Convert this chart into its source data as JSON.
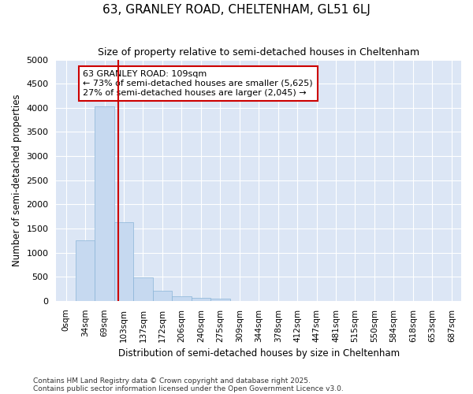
{
  "title": "63, GRANLEY ROAD, CHELTENHAM, GL51 6LJ",
  "subtitle": "Size of property relative to semi-detached houses in Cheltenham",
  "xlabel": "Distribution of semi-detached houses by size in Cheltenham",
  "ylabel": "Number of semi-detached properties",
  "bar_color": "#c6d9f0",
  "bar_edge_color": "#8ab4d8",
  "plot_bg_color": "#dce6f5",
  "fig_bg_color": "#ffffff",
  "grid_color": "#ffffff",
  "annotation_line_color": "#cc0000",
  "annotation_box_color": "#cc0000",
  "categories": [
    "0sqm",
    "34sqm",
    "69sqm",
    "103sqm",
    "137sqm",
    "172sqm",
    "206sqm",
    "240sqm",
    "275sqm",
    "309sqm",
    "344sqm",
    "378sqm",
    "412sqm",
    "447sqm",
    "481sqm",
    "515sqm",
    "550sqm",
    "584sqm",
    "618sqm",
    "653sqm",
    "687sqm"
  ],
  "values": [
    5,
    1250,
    4030,
    1630,
    480,
    215,
    100,
    65,
    40,
    0,
    0,
    0,
    0,
    0,
    0,
    0,
    0,
    0,
    0,
    0,
    0
  ],
  "ylim": [
    0,
    5000
  ],
  "yticks": [
    0,
    500,
    1000,
    1500,
    2000,
    2500,
    3000,
    3500,
    4000,
    4500,
    5000
  ],
  "property_value": 109,
  "property_label": "63 GRANLEY ROAD: 109sqm",
  "pct_smaller": 73,
  "count_smaller": 5625,
  "pct_larger": 27,
  "count_larger": 2045,
  "bin_width": 34,
  "footnote1": "Contains HM Land Registry data © Crown copyright and database right 2025.",
  "footnote2": "Contains public sector information licensed under the Open Government Licence v3.0."
}
